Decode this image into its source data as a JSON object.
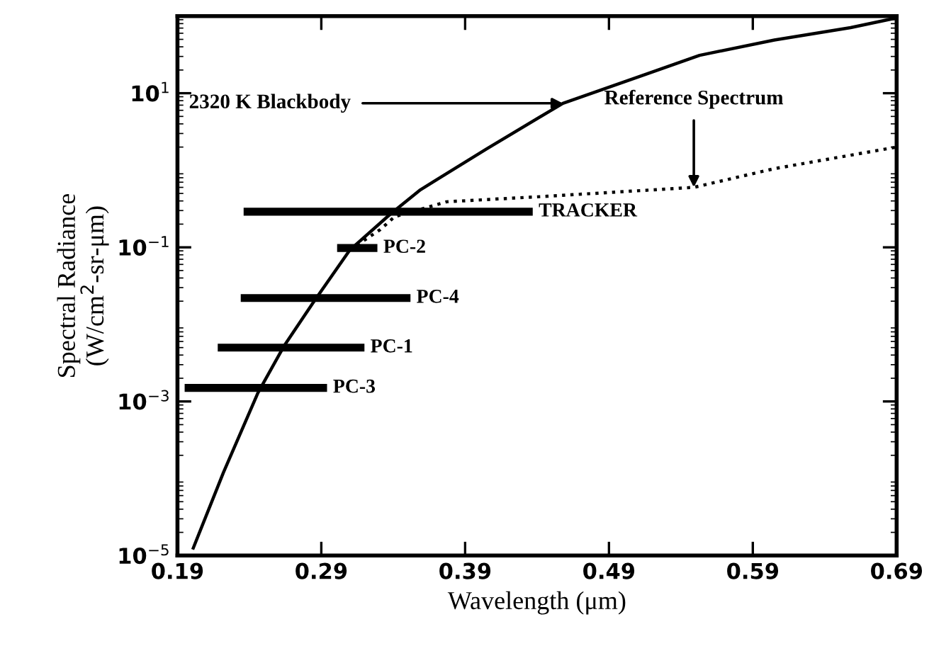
{
  "chart_data": {
    "type": "line",
    "xlabel": "Wavelength (μm)",
    "ylabel": "Spectral Radiance\n(W/cm$^{2}$-sr-μm)",
    "log": "y",
    "xlim": [
      0.19,
      0.69
    ],
    "ylim": [
      1e-05,
      100
    ],
    "xticks": [
      0.19,
      0.29,
      0.39,
      0.49,
      0.59,
      0.69
    ],
    "yticks": [
      {
        "value": 1e-05,
        "label": "10$^{−5}$"
      },
      {
        "value": 0.001,
        "label": "10$^{−3}$"
      },
      {
        "value": 0.1,
        "label": "10$^{−1}$"
      },
      {
        "value": 10,
        "label": "10$^{1}$"
      }
    ],
    "grid": false,
    "legend": false,
    "marker": "none",
    "series": [
      {
        "color": "#000000",
        "line_style": "solid",
        "x": [
          0.2006,
          0.222,
          0.246,
          0.264,
          0.285,
          0.31,
          0.338,
          0.359,
          0.405,
          0.458,
          0.517,
          0.553,
          0.605,
          0.658,
          0.69
        ],
        "values": [
          1.2e-05,
          0.00012,
          0.0013,
          0.0052,
          0.02,
          0.093,
          0.27,
          0.56,
          1.9,
          7.4,
          18,
          31,
          49,
          71,
          95
        ]
      },
      {
        "color": "#000000",
        "line_style": "dotted",
        "x": [
          0.31,
          0.331,
          0.341,
          0.377,
          0.447,
          0.549,
          0.605,
          0.69
        ],
        "values": [
          0.093,
          0.17,
          0.25,
          0.39,
          0.46,
          0.6,
          1.05,
          2.0
        ]
      },
      {
        "name": "TRACKER",
        "color": "#000000",
        "line_style": "solid",
        "x": [
          0.236,
          0.437
        ],
        "values": [
          0.29,
          0.29
        ]
      },
      {
        "name": "PC-2",
        "color": "#000000",
        "line_style": "solid",
        "x": [
          0.301,
          0.329
        ],
        "values": [
          0.098,
          0.098
        ]
      },
      {
        "name": "PC-4",
        "color": "#000000",
        "line_style": "solid",
        "x": [
          0.234,
          0.352
        ],
        "values": [
          0.022,
          0.022
        ]
      },
      {
        "name": "PC-1",
        "color": "#000000",
        "line_style": "solid",
        "x": [
          0.218,
          0.32
        ],
        "values": [
          0.005,
          0.005
        ]
      },
      {
        "name": "PC-3",
        "color": "#000000",
        "line_style": "solid",
        "x": [
          0.195,
          0.294
        ],
        "values": [
          0.0015,
          0.0015
        ]
      }
    ],
    "annotations": [
      {
        "text": "2320 K Blackbody",
        "x": 0.458,
        "y": 7.4
      },
      {
        "text": "Reference Spectrum",
        "x": 0.549,
        "y": 0.6
      }
    ]
  }
}
